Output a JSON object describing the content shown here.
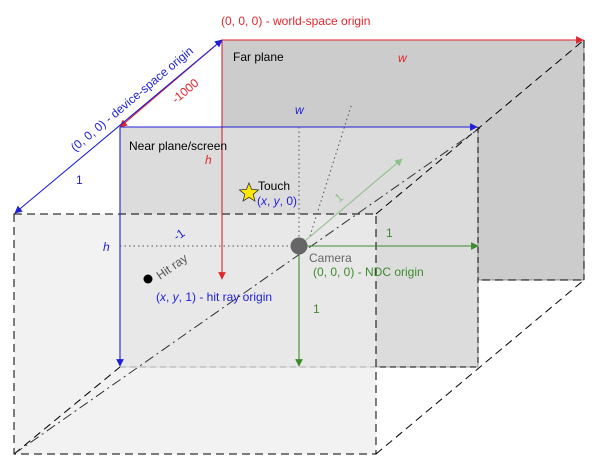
{
  "colors": {
    "red": "#e0262b",
    "blue": "#1f1fd6",
    "green": "#3c8b2c",
    "light_green": "#8fc28a",
    "gray_text": "#777777",
    "far_fill": "#cccccc",
    "near_fill": "#dcdcdc",
    "front_fill": "#ededed"
  },
  "labels": {
    "world_origin": "(0, 0, 0) - world-space origin",
    "far_plane": "Far plane",
    "far_w": "w",
    "far_depth": "-1000",
    "device_origin": "(0, 0, 0) - device-space origin",
    "near_w": "w",
    "near_plane": "Near plane/screen",
    "near_h": "h",
    "device_depth": "1",
    "touch": "Touch",
    "touch_coords_prefix": "(",
    "touch_x": "x",
    "touch_sep1": ", ",
    "touch_y": "y",
    "touch_coords_suffix": ", 0)",
    "front_h": "h",
    "neg_one": "-1",
    "hit_ray": "Hit ray",
    "camera": "Camera",
    "ndc_origin": "(0, 0, 0) - NDC origin",
    "axis_x_one": "1",
    "axis_z_one": "1",
    "axis_y_one": "1",
    "hit_origin_prefix": "(",
    "hit_x": "x",
    "hit_sep1": ", ",
    "hit_y": "y",
    "hit_origin_suffix": ", 1) - hit ray origin"
  }
}
